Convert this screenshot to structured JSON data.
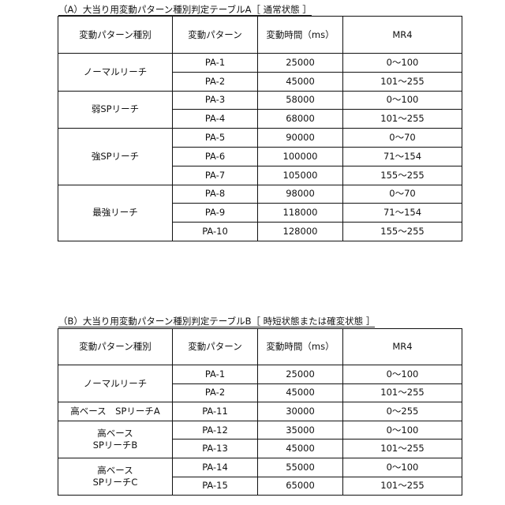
{
  "tables": [
    {
      "title": "（A）大当り用変動パターン種別判定テーブルA［ 通常状態 ］",
      "headers": [
        "変動パターン種別",
        "変動パターン",
        "変動時間（ms）",
        "MR4"
      ],
      "groups": [
        {
          "label": "ノーマルリーチ",
          "rows": [
            [
              "PA-1",
              "25000",
              "0～100"
            ],
            [
              "PA-2",
              "45000",
              "101～255"
            ]
          ]
        },
        {
          "label": "弱SPリーチ",
          "rows": [
            [
              "PA-3",
              "58000",
              "0～100"
            ],
            [
              "PA-4",
              "68000",
              "101～255"
            ]
          ]
        },
        {
          "label": "強SPリーチ",
          "rows": [
            [
              "PA-5",
              "90000",
              "0～70"
            ],
            [
              "PA-6",
              "100000",
              "71～154"
            ],
            [
              "PA-7",
              "105000",
              "155～255"
            ]
          ]
        },
        {
          "label": "最強リーチ",
          "rows": [
            [
              "PA-8",
              "98000",
              "0～70"
            ],
            [
              "PA-9",
              "118000",
              "71～154"
            ],
            [
              "PA-10",
              "128000",
              "155～255"
            ]
          ]
        }
      ]
    },
    {
      "title": "（B）大当り用変動パターン種別判定テーブルB［ 時短状態または確変状態 ］",
      "headers": [
        "変動パターン種別",
        "変動パターン",
        "変動時間（ms）",
        "MR4"
      ],
      "groups": [
        {
          "label": "ノーマルリーチ",
          "rows": [
            [
              "PA-1",
              "25000",
              "0～100"
            ],
            [
              "PA-2",
              "45000",
              "101～255"
            ]
          ]
        },
        {
          "label": "高ベース　SPリーチA",
          "rows": [
            [
              "PA-11",
              "30000",
              "0～255"
            ]
          ]
        },
        {
          "label": "高ベース\nSPリーチB",
          "rows": [
            [
              "PA-12",
              "35000",
              "0～100"
            ],
            [
              "PA-13",
              "45000",
              "101～255"
            ]
          ]
        },
        {
          "label": "高ベース\nSPリーチC",
          "rows": [
            [
              "PA-14",
              "55000",
              "0～100"
            ],
            [
              "PA-15",
              "65000",
              "101～255"
            ]
          ]
        }
      ]
    }
  ]
}
